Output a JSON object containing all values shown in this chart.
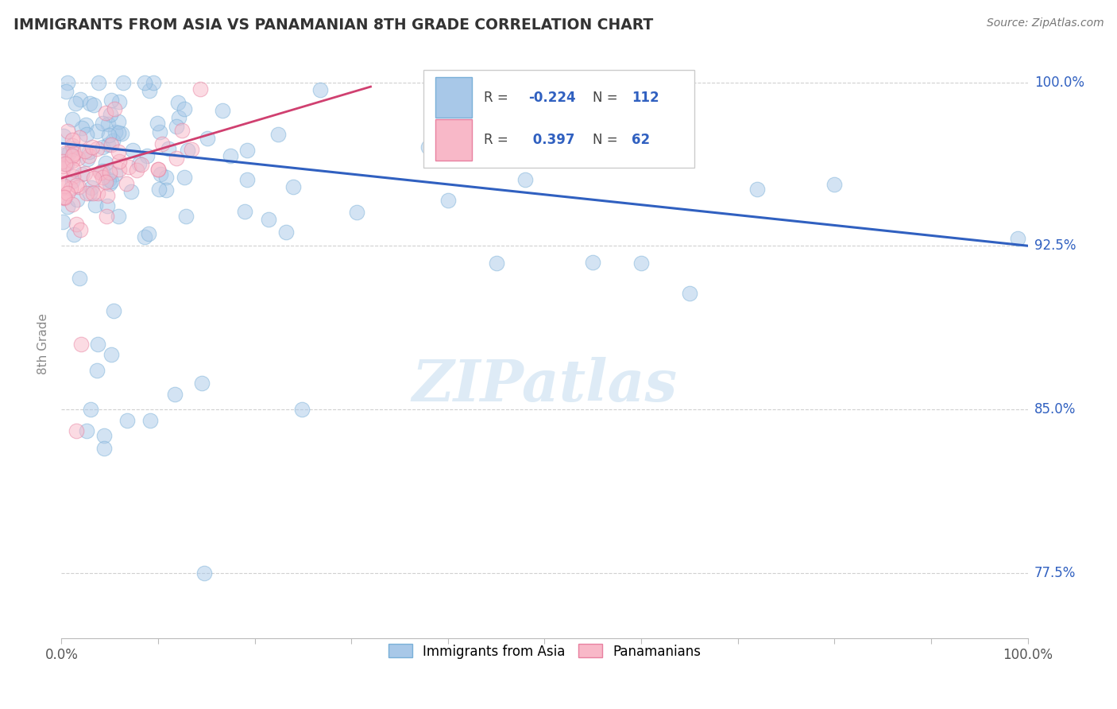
{
  "title": "IMMIGRANTS FROM ASIA VS PANAMANIAN 8TH GRADE CORRELATION CHART",
  "source": "Source: ZipAtlas.com",
  "ylabel": "8th Grade",
  "y_tick_labels": [
    "77.5%",
    "85.0%",
    "92.5%",
    "100.0%"
  ],
  "y_tick_values": [
    0.775,
    0.85,
    0.925,
    1.0
  ],
  "xlim": [
    0.0,
    1.0
  ],
  "ylim": [
    0.745,
    1.015
  ],
  "legend_blue_R": "-0.224",
  "legend_blue_N": "112",
  "legend_pink_R": "0.397",
  "legend_pink_N": "62",
  "legend_label_blue": "Immigrants from Asia",
  "legend_label_pink": "Panamanians",
  "blue_line_x": [
    0.0,
    1.0
  ],
  "blue_line_y": [
    0.972,
    0.925
  ],
  "pink_line_x": [
    0.0,
    0.32
  ],
  "pink_line_y": [
    0.956,
    0.998
  ],
  "scatter_size": 180,
  "scatter_alpha": 0.5,
  "blue_dot_color": "#a8c8e8",
  "blue_dot_edge": "#7ab0d8",
  "pink_dot_color": "#f8b8c8",
  "pink_dot_edge": "#e880a0",
  "blue_line_color": "#3060c0",
  "pink_line_color": "#d04070",
  "grid_color": "#d0d0d0",
  "text_color_blue": "#3060c0",
  "axis_label_color": "#888888",
  "background_color": "#ffffff",
  "watermark_text": "ZIPatlas",
  "watermark_color": "#c8dff0",
  "watermark_alpha": 0.6
}
